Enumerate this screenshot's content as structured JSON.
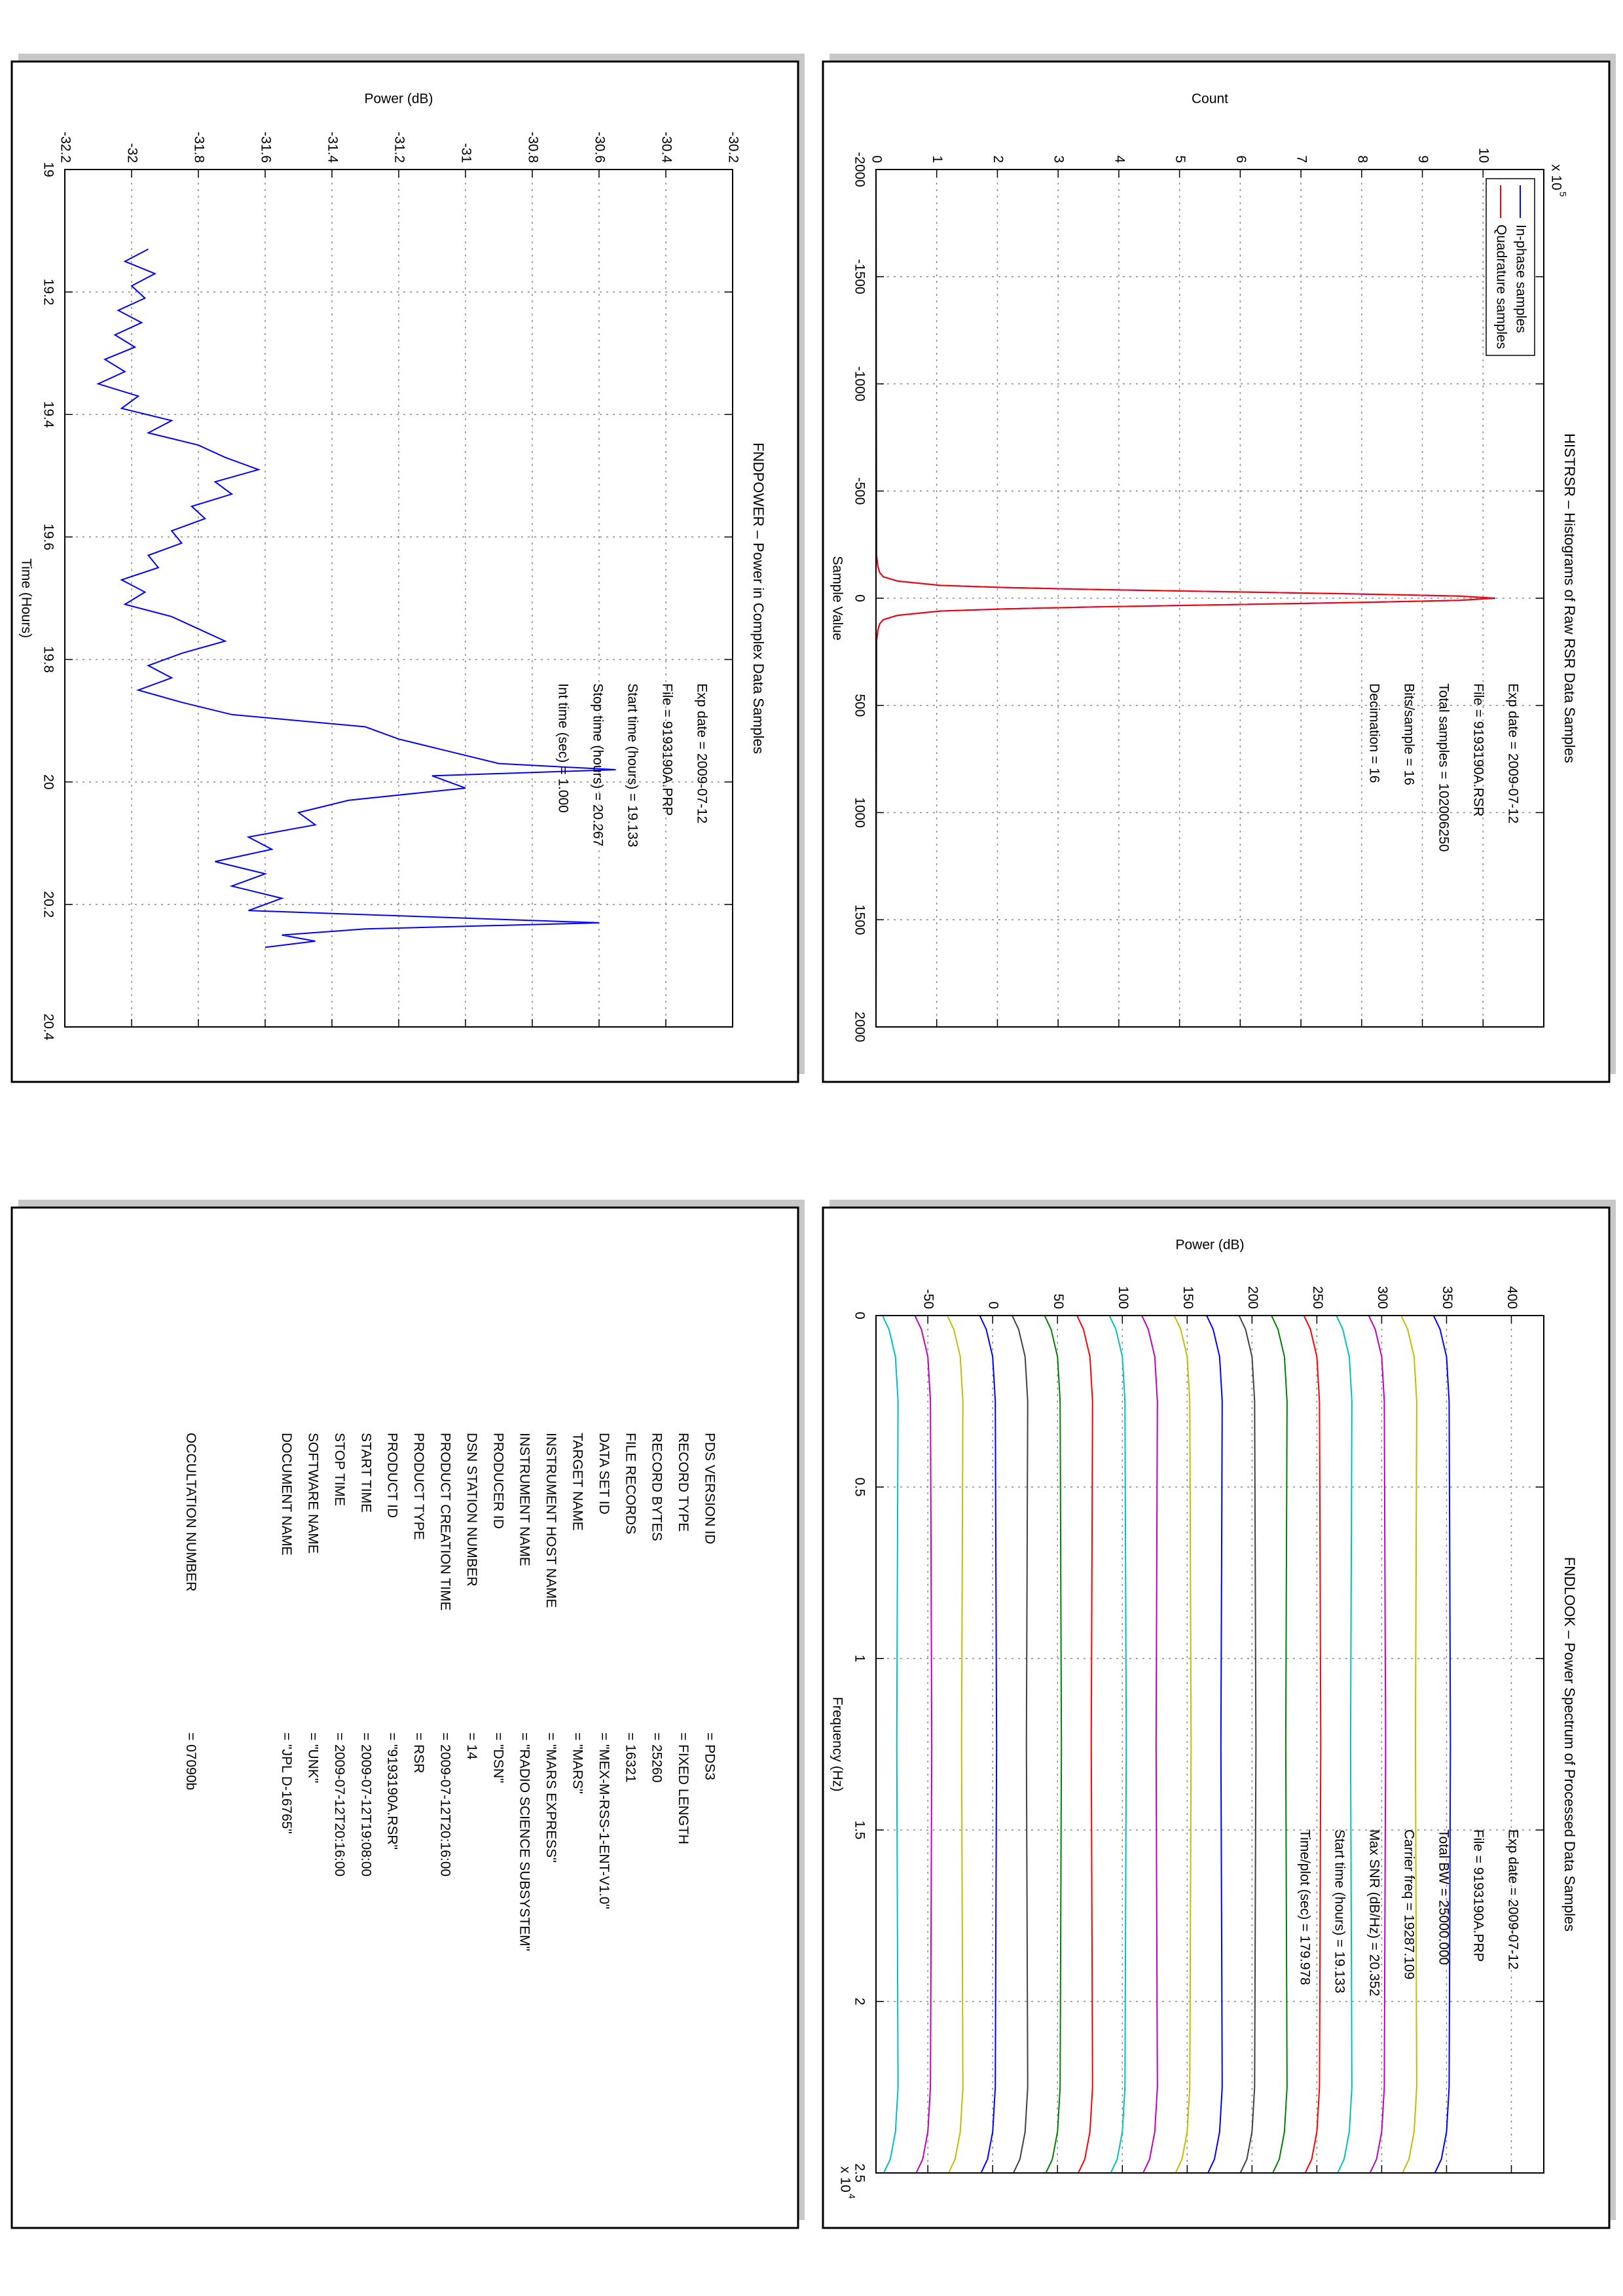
{
  "chart_data": [
    {
      "type": "line",
      "title": "FNDPOWER – Power in Complex Data Samples",
      "x_label": "Time (Hours)",
      "y_label": "Power (dB)",
      "x": [
        19.13,
        19.15,
        19.17,
        19.19,
        19.21,
        19.23,
        19.25,
        19.27,
        19.29,
        19.31,
        19.33,
        19.35,
        19.37,
        19.39,
        19.41,
        19.43,
        19.45,
        19.47,
        19.49,
        19.51,
        19.53,
        19.55,
        19.57,
        19.59,
        19.61,
        19.63,
        19.65,
        19.67,
        19.69,
        19.71,
        19.73,
        19.75,
        19.77,
        19.79,
        19.81,
        19.83,
        19.85,
        19.87,
        19.89,
        19.91,
        19.93,
        19.95,
        19.97,
        19.98,
        19.99,
        20.01,
        20.03,
        20.05,
        20.07,
        20.09,
        20.11,
        20.13,
        20.15,
        20.17,
        20.19,
        20.21,
        20.23,
        20.24,
        20.25,
        20.26,
        20.27
      ],
      "series": [
        {
          "color": "#0000ff",
          "values": [
            -31.95,
            -32.02,
            -31.93,
            -32.0,
            -31.96,
            -32.04,
            -31.97,
            -32.05,
            -31.99,
            -32.08,
            -32.02,
            -32.1,
            -31.98,
            -32.03,
            -31.88,
            -31.95,
            -31.8,
            -31.72,
            -31.62,
            -31.75,
            -31.7,
            -31.82,
            -31.78,
            -31.88,
            -31.85,
            -31.95,
            -31.92,
            -32.03,
            -31.96,
            -32.02,
            -31.88,
            -31.8,
            -31.72,
            -31.85,
            -31.95,
            -31.88,
            -31.98,
            -31.85,
            -31.7,
            -31.3,
            -31.2,
            -31.05,
            -30.9,
            -30.55,
            -31.1,
            -31.0,
            -31.35,
            -31.5,
            -31.45,
            -31.65,
            -31.58,
            -31.75,
            -31.6,
            -31.7,
            -31.55,
            -31.65,
            -30.6,
            -31.3,
            -31.55,
            -31.45,
            -31.6
          ]
        }
      ],
      "xlim": [
        19,
        20.4
      ],
      "xticks": [
        19,
        19.2,
        19.4,
        19.6,
        19.8,
        20,
        20.2,
        20.4
      ],
      "ylim": [
        -32.2,
        -30.2
      ],
      "yticks": [
        -32.2,
        -32,
        -31.8,
        -31.6,
        -31.4,
        -31.2,
        -31,
        -30.8,
        -30.6,
        -30.4,
        -30.2
      ],
      "grid": true,
      "annotations": [
        "Exp date = 2009-07-12",
        "File = 9193190A.PRP",
        "Start time (hours) = 19.133",
        "Stop time (hours) = 20.267",
        "Int time (sec) = 1.000"
      ]
    },
    {
      "type": "line",
      "title": "HISTRSR – Histograms of Raw RSR Data Samples",
      "x_label": "Sample Value",
      "y_label": "Count",
      "y_scale_label": "x 10",
      "y_scale_exponent": "5",
      "x": [
        -2000,
        -200,
        -150,
        -120,
        -100,
        -80,
        -60,
        -50,
        -40,
        -30,
        -20,
        -10,
        0,
        10,
        20,
        30,
        40,
        50,
        60,
        80,
        100,
        120,
        150,
        200,
        2000
      ],
      "series": [
        {
          "name": "In-phase samples",
          "color": "#0000ff",
          "values": [
            0,
            0.01,
            0.03,
            0.06,
            0.12,
            0.35,
            1.05,
            2.1,
            3.7,
            5.8,
            7.9,
            9.6,
            10.2,
            9.6,
            7.9,
            5.8,
            3.7,
            2.1,
            1.05,
            0.35,
            0.12,
            0.06,
            0.03,
            0.01,
            0
          ]
        },
        {
          "name": "Quadrature samples",
          "color": "#ff0000",
          "values": [
            0,
            0.01,
            0.03,
            0.06,
            0.12,
            0.36,
            1.07,
            2.12,
            3.72,
            5.83,
            7.93,
            9.62,
            10.18,
            9.62,
            7.93,
            5.83,
            3.72,
            2.12,
            1.07,
            0.36,
            0.12,
            0.06,
            0.03,
            0.01,
            0
          ]
        }
      ],
      "xlim": [
        -2000,
        2000
      ],
      "xticks": [
        -2000,
        -1500,
        -1000,
        -500,
        0,
        500,
        1000,
        1500,
        2000
      ],
      "ylim": [
        0,
        11
      ],
      "yticks": [
        0,
        1,
        2,
        3,
        4,
        5,
        6,
        7,
        8,
        9,
        10
      ],
      "grid": true,
      "legend": "upper left",
      "annotations": [
        "Exp date = 2009-07-12",
        "File = 9193190A.RSR",
        "Total samples = 102006250",
        "Bits/sample = 16",
        "Decimation = 16"
      ]
    },
    {
      "type": "line",
      "title": "FNDLOOK – Power Spectrum of Processed Data Samples",
      "x_label": "Frequency (Hz)",
      "y_label": "Power (dB)",
      "x_scale_label": "x 10",
      "x_scale_exponent": "4",
      "x": [
        0,
        400,
        1200,
        2500,
        12500,
        22500,
        23800,
        24600,
        25000
      ],
      "series": [
        {
          "color": "#0000ff",
          "values": [
            340,
            345,
            350,
            352,
            353,
            352,
            350,
            346,
            341
          ]
        },
        {
          "color": "#bfbf00",
          "values": [
            315,
            320,
            325,
            327,
            326,
            327,
            325,
            321,
            316
          ]
        },
        {
          "color": "#bf00bf",
          "values": [
            290,
            295,
            300,
            302,
            303,
            302,
            300,
            296,
            291
          ]
        },
        {
          "color": "#00bfbf",
          "values": [
            265,
            270,
            275,
            277,
            276,
            277,
            275,
            271,
            266
          ]
        },
        {
          "color": "#ff0000",
          "values": [
            240,
            245,
            250,
            252,
            253,
            252,
            250,
            246,
            241
          ]
        },
        {
          "color": "#008000",
          "values": [
            215,
            220,
            225,
            227,
            226,
            227,
            225,
            221,
            216
          ]
        },
        {
          "color": "#404040",
          "values": [
            190,
            195,
            200,
            202,
            203,
            202,
            200,
            196,
            191
          ]
        },
        {
          "color": "#0000ff",
          "values": [
            165,
            170,
            175,
            177,
            176,
            177,
            175,
            171,
            166
          ]
        },
        {
          "color": "#bfbf00",
          "values": [
            140,
            145,
            150,
            152,
            153,
            152,
            150,
            146,
            141
          ]
        },
        {
          "color": "#bf00bf",
          "values": [
            115,
            120,
            125,
            127,
            126,
            127,
            125,
            121,
            116
          ]
        },
        {
          "color": "#00bfbf",
          "values": [
            90,
            95,
            100,
            102,
            103,
            102,
            100,
            96,
            91
          ]
        },
        {
          "color": "#ff0000",
          "values": [
            65,
            70,
            75,
            77,
            76,
            77,
            75,
            71,
            66
          ]
        },
        {
          "color": "#008000",
          "values": [
            40,
            45,
            50,
            52,
            53,
            52,
            50,
            46,
            41
          ]
        },
        {
          "color": "#404040",
          "values": [
            15,
            20,
            25,
            27,
            26,
            27,
            25,
            21,
            16
          ]
        },
        {
          "color": "#0000ff",
          "values": [
            -10,
            -5,
            0,
            2,
            3,
            2,
            0,
            -4,
            -9
          ]
        },
        {
          "color": "#bfbf00",
          "values": [
            -35,
            -30,
            -25,
            -23,
            -24,
            -23,
            -25,
            -29,
            -34
          ]
        },
        {
          "color": "#bf00bf",
          "values": [
            -60,
            -55,
            -50,
            -48,
            -47,
            -48,
            -50,
            -54,
            -59
          ]
        },
        {
          "color": "#00bfbf",
          "values": [
            -85,
            -80,
            -75,
            -73,
            -74,
            -73,
            -75,
            -79,
            -84
          ]
        }
      ],
      "xlim": [
        0,
        25000
      ],
      "xticks": [
        0,
        {
          "value": 5000,
          "label": "0.5"
        },
        {
          "value": 10000,
          "label": "1"
        },
        {
          "value": 15000,
          "label": "1.5"
        },
        {
          "value": 20000,
          "label": "2"
        },
        {
          "value": 25000,
          "label": "2.5"
        }
      ],
      "ylim": [
        -90,
        425
      ],
      "yticks": [
        -50,
        0,
        50,
        100,
        150,
        200,
        250,
        300,
        350,
        400
      ],
      "grid": true,
      "annotations": [
        "Exp date = 2009-07-12",
        "File = 9193190A.PRP",
        "Total BW = 25000.000",
        "Carrier freq = 19287.109",
        "Max SNR (dB/Hz) = 20.352",
        "Start time (hours) = 19.133",
        "Time/plot (sec) = 179.978"
      ]
    }
  ],
  "table": {
    "rows": [
      [
        "PDS VERSION ID",
        "= PDS3"
      ],
      [
        "RECORD TYPE",
        "= FIXED LENGTH"
      ],
      [
        "RECORD BYTES",
        "= 25260"
      ],
      [
        "FILE RECORDS",
        "= 16321"
      ],
      [
        "DATA SET ID",
        "= \"MEX-M-RSS-1-ENT-V1.0\""
      ],
      [
        "TARGET NAME",
        "= \"MARS\""
      ],
      [
        "INSTRUMENT HOST NAME",
        "= \"MARS EXPRESS\""
      ],
      [
        "INSTRUMENT NAME",
        "= \"RADIO SCIENCE SUBSYSTEM\""
      ],
      [
        "PRODUCER ID",
        "= \"DSN\""
      ],
      [
        "DSN STATION NUMBER",
        "= 14"
      ],
      [
        "PRODUCT CREATION TIME",
        "= 2009-07-12T20:16:00"
      ],
      [
        "PRODUCT TYPE",
        "= RSR"
      ],
      [
        "PRODUCT ID",
        "= \"9193190A.RSR\""
      ],
      [
        "START TIME",
        "= 2009-07-12T19:08:00"
      ],
      [
        "STOP TIME",
        "= 2009-07-12T20:16:00"
      ],
      [
        "SOFTWARE NAME",
        "= \"UNK\""
      ],
      [
        "DOCUMENT NAME",
        "= \"JPL D-16765\""
      ]
    ],
    "footer_row": [
      "OCCULTATION NUMBER",
      "= 07090b"
    ]
  }
}
